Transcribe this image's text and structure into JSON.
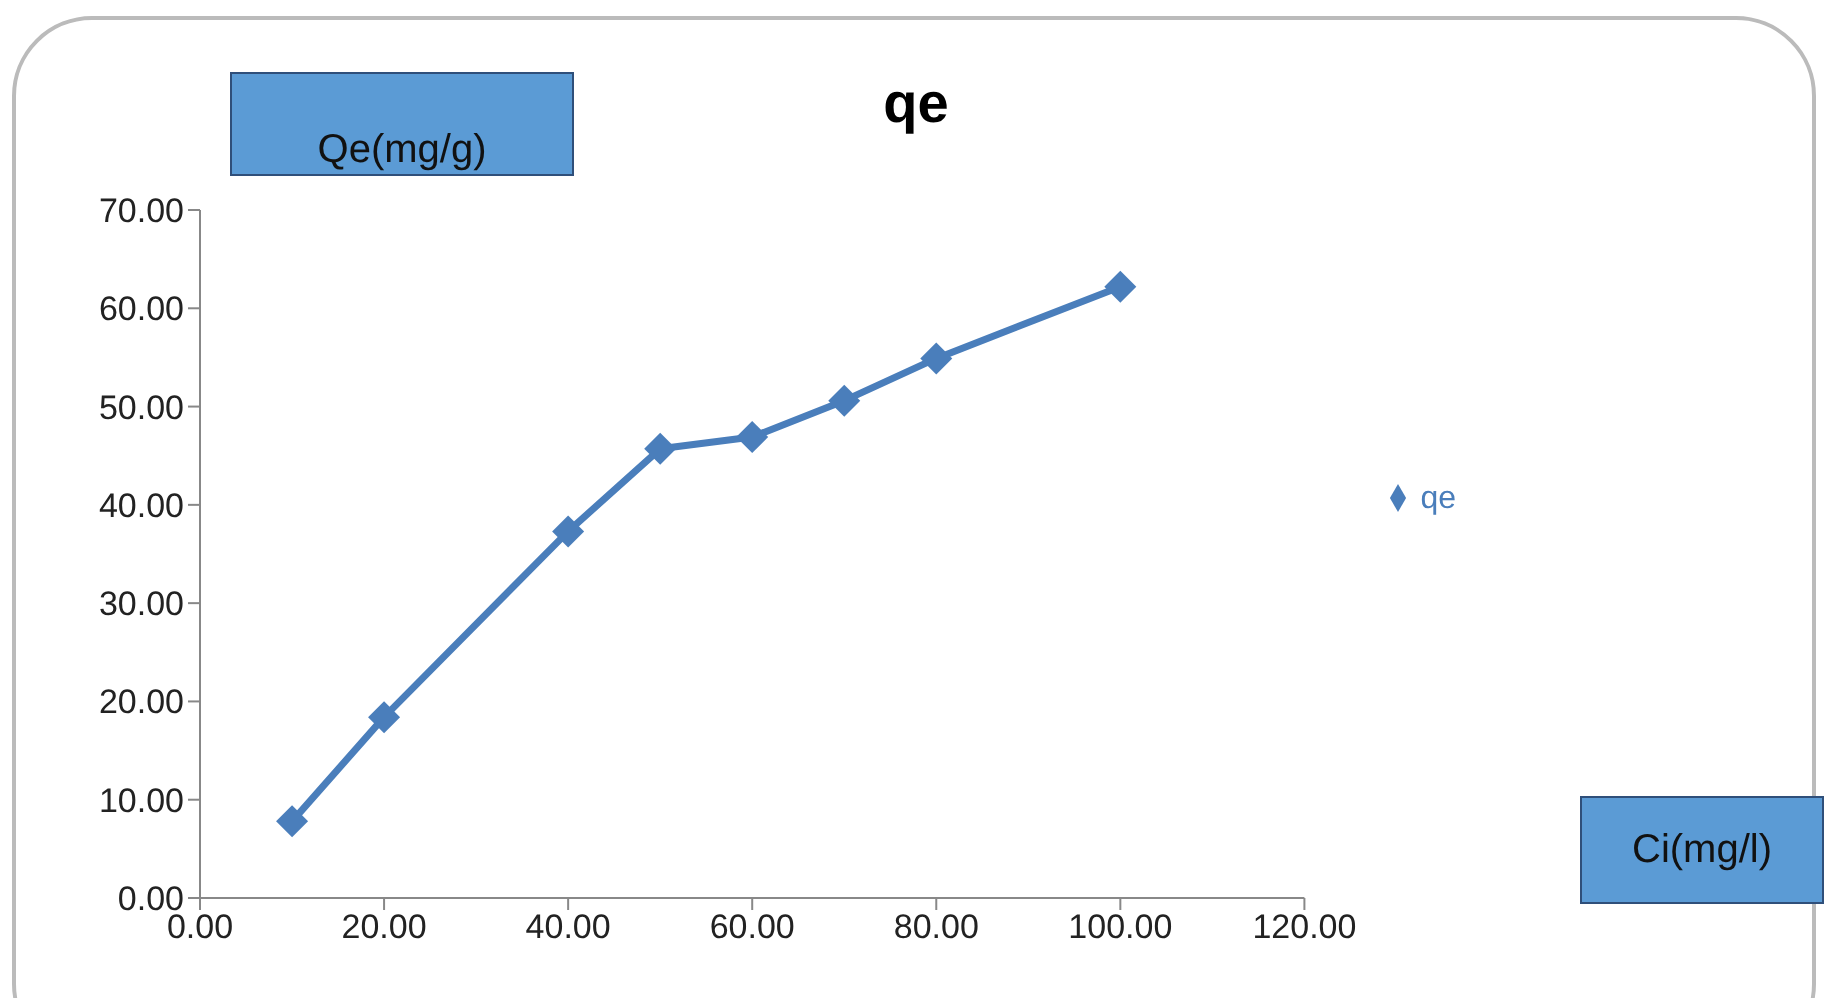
{
  "chart_data": {
    "type": "line",
    "title": "qe",
    "annotations": [
      "Ci(mg/l)"
    ],
    "ylabel": "Qe(mg/g)",
    "x": [
      10,
      20,
      40,
      50,
      60,
      70,
      80,
      100
    ],
    "series": [
      {
        "name": "qe",
        "color": "#4a7ebb",
        "values": [
          7.8,
          18.4,
          37.3,
          45.7,
          46.9,
          50.6,
          54.9,
          62.2
        ]
      }
    ],
    "xlim": [
      0,
      120
    ],
    "xticks": [
      {
        "value": 0,
        "label": "0.00"
      },
      {
        "value": 20,
        "label": "20.00"
      },
      {
        "value": 40,
        "label": "40.00"
      },
      {
        "value": 60,
        "label": "60.00"
      },
      {
        "value": 80,
        "label": "80.00"
      },
      {
        "value": 100,
        "label": "100.00"
      },
      {
        "value": 120,
        "label": "120.00"
      }
    ],
    "ylim": [
      0,
      70
    ],
    "yticks": [
      {
        "value": 0,
        "label": "0.00"
      },
      {
        "value": 10,
        "label": "10.00"
      },
      {
        "value": 20,
        "label": "20.00"
      },
      {
        "value": 30,
        "label": "30.00"
      },
      {
        "value": 40,
        "label": "40.00"
      },
      {
        "value": 50,
        "label": "50.00"
      },
      {
        "value": 60,
        "label": "60.00"
      },
      {
        "value": 70,
        "label": "70.00"
      }
    ],
    "grid": false,
    "legend": "right",
    "marker": "diamond",
    "line_style": "solid"
  }
}
